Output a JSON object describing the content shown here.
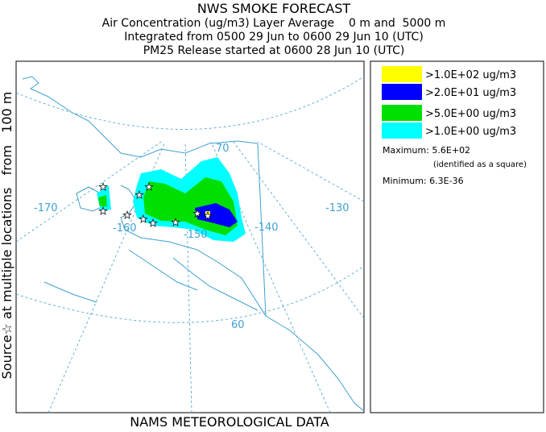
{
  "header": {
    "title": "NWS SMOKE FORECAST",
    "lines": [
      "Air Concentration (ug/m3) Layer Average    0 m and  5000 m",
      "Integrated from 0500 29 Jun to 0600 29 Jun 10 (UTC)",
      "PM25 Release started at 0600 28 Jun 10 (UTC)"
    ]
  },
  "side_label": "Source☆ at multiple locations   from   100 m",
  "map": {
    "grid_labels": [
      {
        "text": "-170",
        "kind": "lon"
      },
      {
        "text": "-160",
        "kind": "lon"
      },
      {
        "text": "-150",
        "kind": "lon"
      },
      {
        "text": "-140",
        "kind": "lon"
      },
      {
        "text": "-130",
        "kind": "lon"
      },
      {
        "text": "70",
        "kind": "lat"
      },
      {
        "text": "60",
        "kind": "lat"
      }
    ]
  },
  "legend": {
    "entries": [
      {
        "color": "#ffff00",
        "label": ">1.0E+02 ug/m3"
      },
      {
        "color": "#0000ff",
        "label": ">2.0E+01 ug/m3"
      },
      {
        "color": "#00e000",
        "label": ">5.0E+00 ug/m3"
      },
      {
        "color": "#00ffff",
        "label": ">1.0E+00 ug/m3"
      }
    ],
    "maximum": "Maximum: 5.6E+02",
    "maximum_note": "(identified as a square)",
    "minimum": "Minimum: 6.3E-36"
  },
  "footer": "NAMS METEOROLOGICAL DATA"
}
